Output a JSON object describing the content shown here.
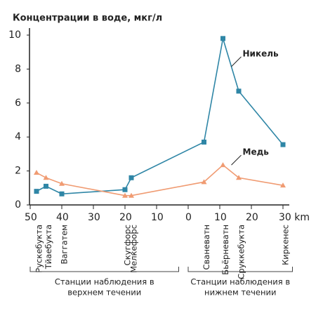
{
  "chart_data": {
    "type": "line",
    "title": "Концентрации в воде, мкг/л",
    "x": [
      -48,
      -45,
      -40,
      -20,
      -18,
      5,
      11,
      16,
      30
    ],
    "labels": [
      "Рускебукта",
      "Тйаебукта",
      "Ваггатем",
      "Скугфорс",
      "Мелкефорс",
      "Сваневатн",
      "Бьёрневатн",
      "Сруккебукта",
      "Киркенес"
    ],
    "series": [
      {
        "name": "Никель",
        "color": "#2f86a6",
        "marker": "square",
        "values": [
          0.8,
          1.1,
          0.65,
          0.9,
          1.6,
          3.7,
          9.8,
          6.7,
          3.55
        ]
      },
      {
        "name": "Медь",
        "color": "#f09b72",
        "marker": "triangle",
        "values": [
          1.9,
          1.6,
          1.25,
          0.55,
          0.55,
          1.35,
          2.35,
          1.6,
          1.15
        ]
      }
    ],
    "xlim": [
      -50,
      30
    ],
    "xticks": [
      {
        "value": -50,
        "label": "50"
      },
      {
        "value": -40,
        "label": "40"
      },
      {
        "value": -30,
        "label": "30"
      },
      {
        "value": -20,
        "label": "20"
      },
      {
        "value": -10,
        "label": "10"
      },
      0,
      10,
      20,
      {
        "value": 30,
        "label": "30 km"
      }
    ],
    "ylim": [
      0,
      10
    ],
    "yticks": [
      0,
      2,
      4,
      6,
      8,
      10
    ],
    "groups": [
      {
        "lines": [
          "Станции наблюдения в",
          "верхнем течении"
        ],
        "from": -50,
        "to": -3
      },
      {
        "lines": [
          "Станции наблюдения в",
          "нижнем течении"
        ],
        "from": 0,
        "to": 33
      }
    ]
  }
}
